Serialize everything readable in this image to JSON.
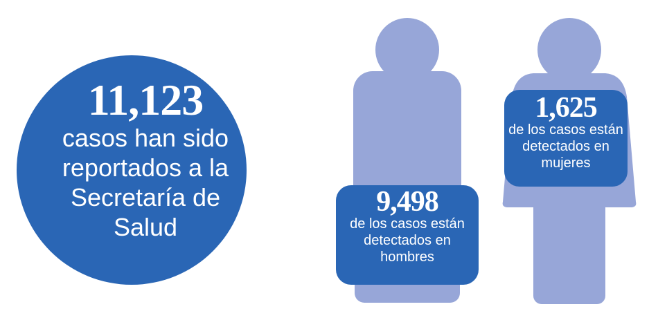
{
  "total": {
    "number": "11,123",
    "lines": [
      "casos han sido",
      "reportados a la",
      "Secretaría de",
      "Salud"
    ]
  },
  "men": {
    "number": "9,498",
    "lines": [
      "de los casos están",
      "detectados en",
      "hombres"
    ]
  },
  "women": {
    "number": "1,625",
    "lines": [
      "de los casos están",
      "detectados en",
      "mujeres"
    ]
  }
}
